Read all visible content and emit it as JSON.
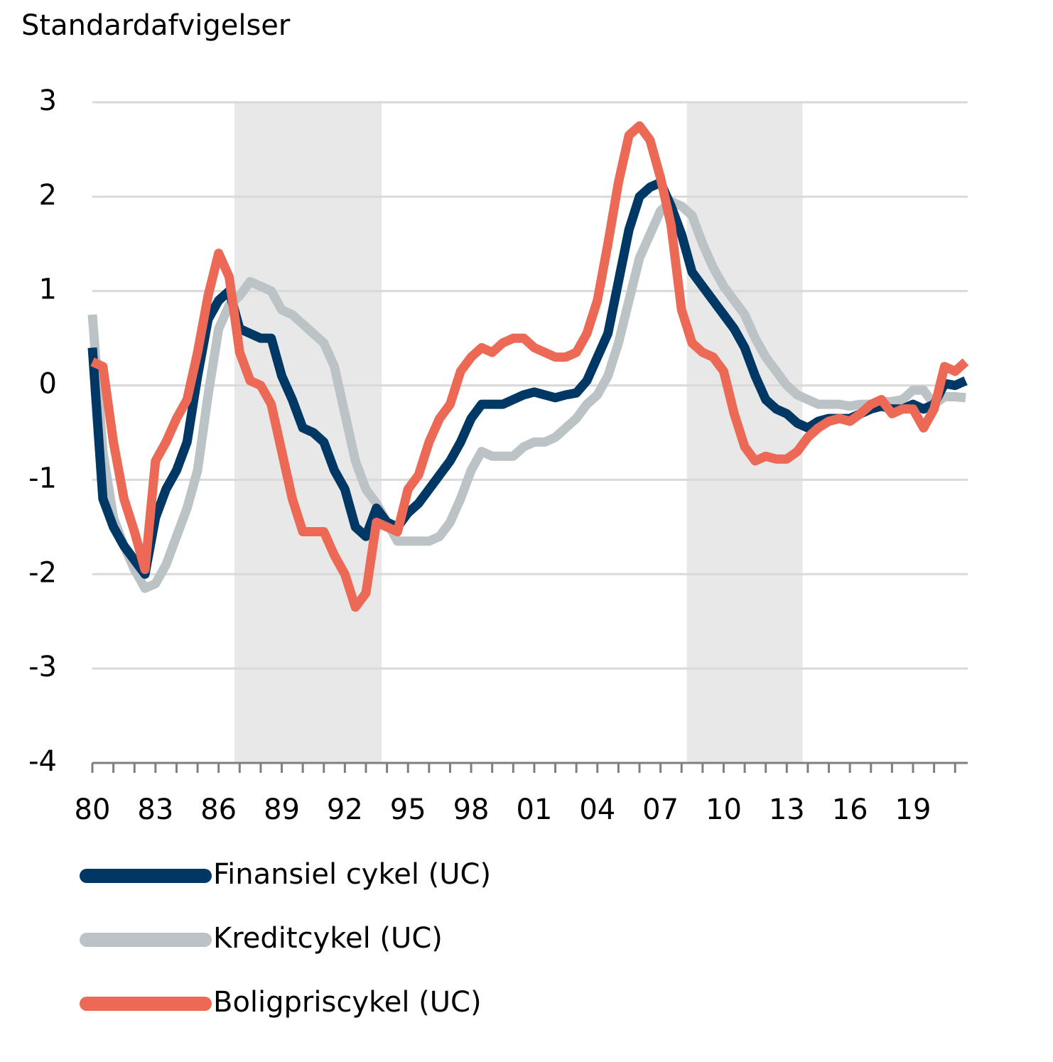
{
  "chart_data": {
    "type": "line",
    "ylabel": "Standardafvigelser",
    "xlim": [
      1980,
      2021.6
    ],
    "ylim": [
      -4,
      3
    ],
    "yticks": [
      -4,
      -3,
      -2,
      -1,
      0,
      1,
      2,
      3
    ],
    "xticks": [
      {
        "value": 1980,
        "label": "80"
      },
      {
        "value": 1983,
        "label": "83"
      },
      {
        "value": 1986,
        "label": "86"
      },
      {
        "value": 1989,
        "label": "89"
      },
      {
        "value": 1992,
        "label": "92"
      },
      {
        "value": 1995,
        "label": "95"
      },
      {
        "value": 1998,
        "label": "98"
      },
      {
        "value": 2001,
        "label": "01"
      },
      {
        "value": 2004,
        "label": "04"
      },
      {
        "value": 2007,
        "label": "07"
      },
      {
        "value": 2010,
        "label": "10"
      },
      {
        "value": 2013,
        "label": "13"
      },
      {
        "value": 2016,
        "label": "16"
      },
      {
        "value": 2019,
        "label": "19"
      }
    ],
    "xminor": [
      1980,
      1981,
      1982,
      1983,
      1984,
      1985,
      1986,
      1987,
      1988,
      1989,
      1990,
      1991,
      1992,
      1993,
      1994,
      1995,
      1996,
      1997,
      1998,
      1999,
      2000,
      2001,
      2002,
      2003,
      2004,
      2005,
      2006,
      2007,
      2008,
      2009,
      2010,
      2011,
      2012,
      2013,
      2014,
      2015,
      2016,
      2017,
      2018,
      2019,
      2020,
      2021
    ],
    "grid": true,
    "shaded_periods": [
      [
        1986.75,
        1993.75
      ],
      [
        2008.25,
        2013.75
      ]
    ],
    "x": [
      1980,
      1980.5,
      1981,
      1981.5,
      1982,
      1982.5,
      1983,
      1983.5,
      1984,
      1984.5,
      1985,
      1985.5,
      1986,
      1986.5,
      1987,
      1987.5,
      1988,
      1988.5,
      1989,
      1989.5,
      1990,
      1990.5,
      1991,
      1991.5,
      1992,
      1992.5,
      1993,
      1993.5,
      1994,
      1994.5,
      1995,
      1995.5,
      1996,
      1996.5,
      1997,
      1997.5,
      1998,
      1998.5,
      1999,
      1999.5,
      2000,
      2000.5,
      2001,
      2001.5,
      2002,
      2002.5,
      2003,
      2003.5,
      2004,
      2004.5,
      2005,
      2005.5,
      2006,
      2006.5,
      2007,
      2007.5,
      2008,
      2008.5,
      2009,
      2009.5,
      2010,
      2010.5,
      2011,
      2011.5,
      2012,
      2012.5,
      2013,
      2013.5,
      2014,
      2014.5,
      2015,
      2015.5,
      2016,
      2016.5,
      2017,
      2017.5,
      2018,
      2018.5,
      2019,
      2019.5,
      2020,
      2020.5,
      2021,
      2021.5
    ],
    "series": [
      {
        "name": "Finansiel cykel (UC)",
        "color": "#003865",
        "values": [
          0.4,
          -1.2,
          -1.5,
          -1.7,
          -1.85,
          -2.0,
          -1.4,
          -1.1,
          -0.9,
          -0.6,
          0.1,
          0.7,
          0.9,
          1.0,
          0.6,
          0.55,
          0.5,
          0.5,
          0.1,
          -0.15,
          -0.45,
          -0.5,
          -0.6,
          -0.9,
          -1.1,
          -1.5,
          -1.6,
          -1.3,
          -1.45,
          -1.5,
          -1.35,
          -1.25,
          -1.1,
          -0.95,
          -0.8,
          -0.6,
          -0.35,
          -0.2,
          -0.2,
          -0.2,
          -0.15,
          -0.1,
          -0.07,
          -0.1,
          -0.13,
          -0.1,
          -0.08,
          0.05,
          0.3,
          0.55,
          1.1,
          1.65,
          2.0,
          2.1,
          2.15,
          1.9,
          1.6,
          1.2,
          1.05,
          0.9,
          0.75,
          0.6,
          0.4,
          0.1,
          -0.15,
          -0.25,
          -0.3,
          -0.4,
          -0.45,
          -0.38,
          -0.35,
          -0.35,
          -0.35,
          -0.3,
          -0.25,
          -0.22,
          -0.25,
          -0.25,
          -0.2,
          -0.25,
          -0.2,
          0.02,
          0.0,
          0.05
        ]
      },
      {
        "name": "Kreditcykel (UC)",
        "color": "#bcc3c6",
        "values": [
          0.75,
          -0.7,
          -1.4,
          -1.7,
          -1.95,
          -2.15,
          -2.1,
          -1.9,
          -1.6,
          -1.3,
          -0.9,
          -0.1,
          0.6,
          0.85,
          0.95,
          1.1,
          1.05,
          1.0,
          0.8,
          0.75,
          0.65,
          0.55,
          0.45,
          0.2,
          -0.3,
          -0.8,
          -1.1,
          -1.25,
          -1.45,
          -1.65,
          -1.65,
          -1.65,
          -1.65,
          -1.6,
          -1.45,
          -1.2,
          -0.9,
          -0.7,
          -0.75,
          -0.75,
          -0.75,
          -0.65,
          -0.6,
          -0.6,
          -0.55,
          -0.45,
          -0.35,
          -0.2,
          -0.1,
          0.1,
          0.45,
          0.9,
          1.35,
          1.6,
          1.85,
          1.95,
          1.9,
          1.8,
          1.5,
          1.25,
          1.05,
          0.9,
          0.75,
          0.5,
          0.3,
          0.15,
          0.0,
          -0.1,
          -0.15,
          -0.2,
          -0.2,
          -0.2,
          -0.22,
          -0.2,
          -0.2,
          -0.18,
          -0.17,
          -0.15,
          -0.05,
          -0.05,
          -0.2,
          -0.12,
          -0.12,
          -0.13
        ]
      },
      {
        "name": "Boligpriscykel (UC)",
        "color": "#ec6a55",
        "values": [
          0.25,
          0.2,
          -0.6,
          -1.2,
          -1.55,
          -1.95,
          -0.8,
          -0.6,
          -0.35,
          -0.15,
          0.35,
          0.95,
          1.4,
          1.15,
          0.35,
          0.05,
          0.0,
          -0.2,
          -0.7,
          -1.2,
          -1.55,
          -1.55,
          -1.55,
          -1.8,
          -2.0,
          -2.35,
          -2.2,
          -1.45,
          -1.5,
          -1.55,
          -1.1,
          -0.95,
          -0.6,
          -0.35,
          -0.2,
          0.15,
          0.3,
          0.4,
          0.35,
          0.45,
          0.5,
          0.5,
          0.4,
          0.35,
          0.3,
          0.3,
          0.35,
          0.55,
          0.9,
          1.5,
          2.15,
          2.65,
          2.75,
          2.6,
          2.2,
          1.7,
          0.8,
          0.45,
          0.35,
          0.3,
          0.15,
          -0.3,
          -0.65,
          -0.8,
          -0.75,
          -0.78,
          -0.78,
          -0.7,
          -0.55,
          -0.45,
          -0.38,
          -0.35,
          -0.38,
          -0.3,
          -0.2,
          -0.15,
          -0.3,
          -0.25,
          -0.25,
          -0.45,
          -0.25,
          0.2,
          0.15,
          0.25
        ]
      }
    ]
  }
}
